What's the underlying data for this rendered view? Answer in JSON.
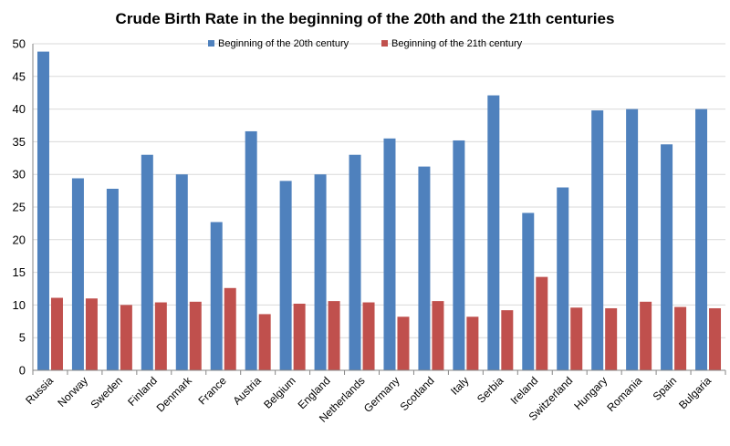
{
  "chart_data": {
    "type": "bar",
    "title": "Crude Birth Rate in the beginning of the 20th and the 21th centuries",
    "xlabel": "",
    "ylabel": "",
    "ylim": [
      0,
      50
    ],
    "yticks": [
      0,
      5,
      10,
      15,
      20,
      25,
      30,
      35,
      40,
      45,
      50
    ],
    "grid": true,
    "legend_position": "top",
    "categories": [
      "Russia",
      "Norway",
      "Sweden",
      "Finland",
      "Denmark",
      "France",
      "Austria",
      "Belgium",
      "England",
      "Netherlands",
      "Germany",
      "Scotland",
      "Italy",
      "Serbia",
      "Ireland",
      "Switzerland",
      "Hungary",
      "Romania",
      "Spain",
      "Bulgaria"
    ],
    "series": [
      {
        "name": "Beginning of the 20th century",
        "color": "#4f81bd",
        "values": [
          48.8,
          29.4,
          27.8,
          33.0,
          30.0,
          22.7,
          36.6,
          29.0,
          30.0,
          33.0,
          35.5,
          31.2,
          35.2,
          42.1,
          24.1,
          28.0,
          39.8,
          40.0,
          34.6,
          40.0
        ]
      },
      {
        "name": "Beginning of the 21th century",
        "color": "#c0504d",
        "values": [
          11.1,
          11.0,
          10.0,
          10.4,
          10.5,
          12.6,
          8.6,
          10.2,
          10.6,
          10.4,
          8.2,
          10.6,
          8.2,
          9.2,
          14.3,
          9.6,
          9.5,
          10.5,
          9.7,
          9.5
        ]
      }
    ]
  }
}
